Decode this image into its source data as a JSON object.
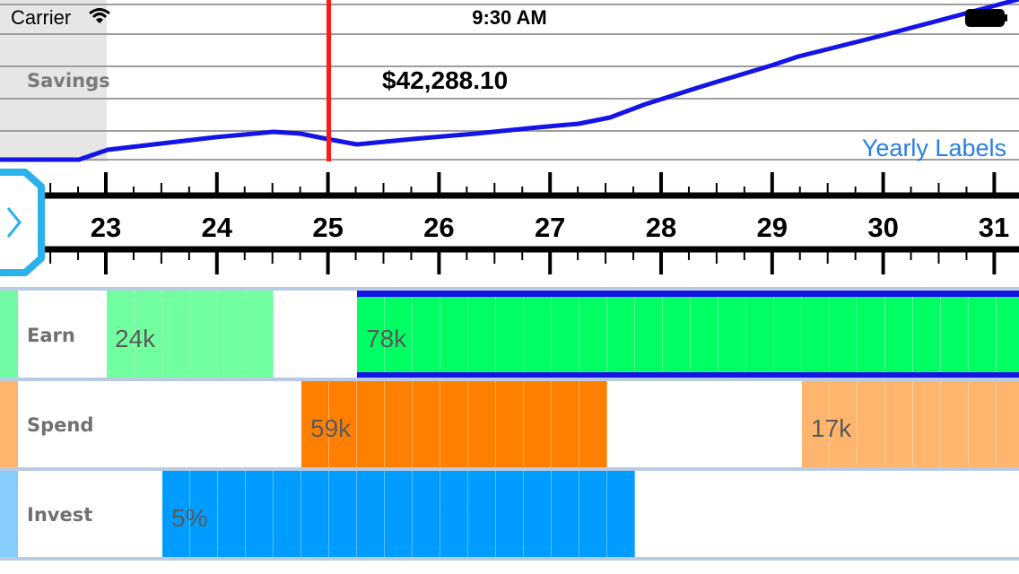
{
  "status_bar": {
    "carrier": "Carrier",
    "time": "9:30 AM"
  },
  "savings_chart": {
    "label": "Savings",
    "cursor_value": "$42,288.10",
    "link_label": "Yearly Labels",
    "line_color": "#1414e6",
    "cursor_color": "#ff1a1a"
  },
  "timeline": {
    "years": [
      "23",
      "24",
      "25",
      "26",
      "27",
      "28",
      "29",
      "30",
      "31"
    ],
    "cursor_year": 25
  },
  "rows": {
    "earn": {
      "label": "Earn",
      "side_color": "#72f9a3",
      "segments": [
        {
          "text": "24k",
          "color": "#72ffa0"
        },
        {
          "text": "78k",
          "color": "#00ff62",
          "border": "#1414e6"
        }
      ]
    },
    "spend": {
      "label": "Spend",
      "side_color": "#ffb56e",
      "segments": [
        {
          "text": "59k",
          "color": "#ff8000"
        },
        {
          "text": "17k",
          "color": "#ffb56e"
        }
      ]
    },
    "invest": {
      "label": "Invest",
      "side_color": "#86ccfc",
      "segments": [
        {
          "text": "5%",
          "color": "#009cff"
        }
      ]
    }
  }
}
